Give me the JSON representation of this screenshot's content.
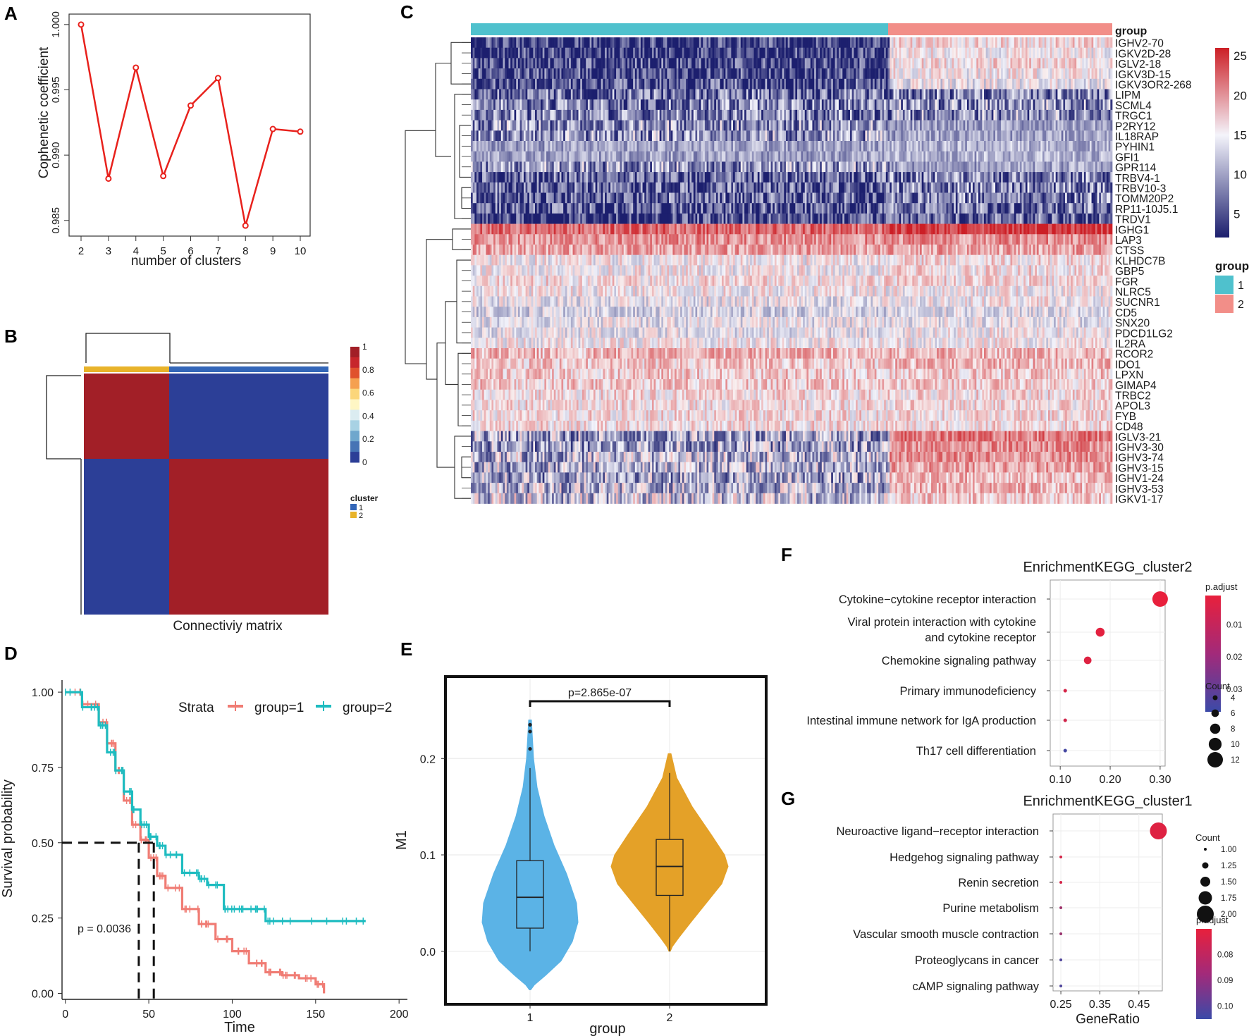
{
  "panel_letters": {
    "a": "A",
    "b": "B",
    "c": "C",
    "d": "D",
    "e": "E",
    "f": "F",
    "g": "G"
  },
  "chart_data": [
    {
      "id": "A",
      "type": "line",
      "xlabel": "number of clusters",
      "ylabel": "Cophenetic coefficient",
      "x": [
        2,
        3,
        4,
        5,
        6,
        7,
        8,
        9,
        10
      ],
      "values": [
        1.0,
        0.9882,
        0.9967,
        0.9884,
        0.9938,
        0.9959,
        0.9846,
        0.992,
        0.9918
      ],
      "ylim": [
        0.9838,
        1.0008
      ],
      "yticks": [
        "0.985",
        "0.990",
        "0.995",
        "1.000"
      ],
      "ytick_values": [
        0.985,
        0.99,
        0.995,
        1.0
      ],
      "color": "#e8211c"
    },
    {
      "id": "B",
      "type": "heatmap",
      "xlabel": "Connectiviy matrix",
      "matrix": [
        [
          1,
          0
        ],
        [
          0,
          1
        ]
      ],
      "cluster_sizes": [
        1,
        2
      ],
      "cluster_bar": [
        "2",
        "1"
      ],
      "colorbar_ticks": [
        "1",
        "0.8",
        "0.6",
        "0.4",
        "0.2",
        "0"
      ],
      "colorbar_colors": [
        "#a21f27",
        "#c7262b",
        "#e0512d",
        "#f5a04f",
        "#fbd67a",
        "#fef6c4",
        "#dbecf1",
        "#a8d2e4",
        "#6fa7cd",
        "#4674b5",
        "#2c3f97"
      ],
      "legend_title": "cluster",
      "legend": [
        {
          "label": "1",
          "color": "#3366b8"
        },
        {
          "label": "2",
          "color": "#e8b32a"
        }
      ],
      "high_color": "#a21f27",
      "low_color": "#2c3f97"
    },
    {
      "id": "C",
      "type": "heatmap",
      "genes": [
        "IGHV2-70",
        "IGKV2D-28",
        "IGLV2-18",
        "IGKV3D-15",
        "IGKV3OR2-268",
        "LIPM",
        "SCML4",
        "TRGC1",
        "P2RY12",
        "IL18RAP",
        "PYHIN1",
        "GFI1",
        "GPR114",
        "TRBV4-1",
        "TRBV10-3",
        "TOMM20P2",
        "RP11-10J5.1",
        "TRDV1",
        "IGHG1",
        "LAP3",
        "CTSS",
        "KLHDC7B",
        "GBP5",
        "FGR",
        "NLRC5",
        "SUCNR1",
        "CD5",
        "SNX20",
        "PDCD1LG2",
        "IL2RA",
        "RCOR2",
        "IDO1",
        "LPXN",
        "GIMAP4",
        "TRBC2",
        "APOL3",
        "FYB",
        "CD48",
        "IGLV3-21",
        "IGHV3-30",
        "IGHV3-74",
        "IGHV3-15",
        "IGHV1-24",
        "IGHV3-53",
        "IGKV1-17"
      ],
      "group1_means": [
        3,
        3,
        4,
        4,
        5,
        7,
        8,
        8,
        9,
        9,
        10,
        10,
        9,
        6,
        6,
        6,
        5,
        4,
        22,
        20,
        19,
        15,
        15,
        16,
        15,
        14,
        13,
        14,
        14,
        15,
        18,
        17,
        17,
        17,
        16,
        16,
        16,
        16,
        10,
        10,
        11,
        11,
        10,
        11,
        12
      ],
      "group2_means": [
        16,
        15,
        16,
        15,
        14,
        8,
        9,
        9,
        10,
        10,
        11,
        11,
        10,
        8,
        8,
        8,
        7,
        6,
        25,
        20,
        19,
        16,
        16,
        16,
        15,
        15,
        14,
        14,
        15,
        15,
        18,
        18,
        17,
        17,
        16,
        16,
        16,
        16,
        21,
        20,
        20,
        19,
        18,
        18,
        17
      ],
      "group_label": "group",
      "groups": [
        {
          "label": "1",
          "color": "#4fc1cd"
        },
        {
          "label": "2",
          "color": "#f28e88"
        }
      ],
      "colorbar_ticks": [
        "25",
        "20",
        "15",
        "10",
        "5"
      ],
      "colorbar_values": [
        25,
        20,
        15,
        10,
        5
      ],
      "colorbar_range": [
        2,
        26
      ]
    },
    {
      "id": "D",
      "type": "line",
      "xlabel": "Time",
      "ylabel": "Survival probability",
      "legend_title": "Strata",
      "series": [
        {
          "name": "group=1",
          "color": "#f07c74",
          "x": [
            0,
            10,
            20,
            25,
            30,
            35,
            40,
            45,
            50,
            55,
            60,
            70,
            80,
            90,
            100,
            110,
            120,
            130,
            140,
            150,
            155
          ],
          "values": [
            1.0,
            0.96,
            0.9,
            0.83,
            0.74,
            0.64,
            0.56,
            0.51,
            0.45,
            0.39,
            0.35,
            0.28,
            0.23,
            0.18,
            0.14,
            0.1,
            0.07,
            0.06,
            0.05,
            0.03,
            0.0
          ]
        },
        {
          "name": "group=2",
          "color": "#1ebcc0",
          "x": [
            0,
            10,
            20,
            25,
            30,
            35,
            40,
            45,
            50,
            55,
            60,
            70,
            80,
            85,
            95,
            100,
            110,
            120,
            130,
            150,
            180
          ],
          "values": [
            1.0,
            0.95,
            0.89,
            0.8,
            0.74,
            0.67,
            0.61,
            0.56,
            0.52,
            0.49,
            0.46,
            0.4,
            0.38,
            0.36,
            0.28,
            0.28,
            0.28,
            0.24,
            0.24,
            0.24,
            0.24
          ]
        }
      ],
      "median_lines": [
        44,
        53
      ],
      "pvalue": "p = 0.0036",
      "xticks": [
        "0",
        "50",
        "100",
        "150",
        "200"
      ],
      "xtick_values": [
        0,
        50,
        100,
        150,
        200
      ],
      "yticks": [
        "0.00",
        "0.25",
        "0.50",
        "0.75",
        "1.00"
      ],
      "ytick_values": [
        0,
        0.25,
        0.5,
        0.75,
        1.0
      ],
      "xlim": [
        -2,
        205
      ],
      "ylim": [
        -0.02,
        1.04
      ]
    },
    {
      "id": "E",
      "type": "violin",
      "xlabel": "group",
      "ylabel": "M1",
      "categories": [
        "1",
        "2"
      ],
      "boxes": [
        {
          "q1": 0.024,
          "median": 0.056,
          "q3": 0.094,
          "whisker_low": 0.0,
          "whisker_high": 0.19,
          "outliers": [
            0.21,
            0.228,
            0.235
          ],
          "ymin": -0.03,
          "ymax": 0.24,
          "color": "#5bb3e6"
        },
        {
          "q1": 0.058,
          "median": 0.088,
          "q3": 0.116,
          "whisker_low": 0.0,
          "whisker_high": 0.185,
          "outliers": [],
          "ymin": 0.0,
          "ymax": 0.21,
          "color": "#e4a128"
        }
      ],
      "pvalue": "p=2.865e-07",
      "yticks": [
        "0.0",
        "0.1",
        "0.2"
      ],
      "ytick_values": [
        0,
        0.1,
        0.2
      ],
      "ylim": [
        -0.055,
        0.285
      ]
    },
    {
      "id": "F",
      "type": "scatter",
      "title": "EnrichmentKEGG_cluster2",
      "terms": [
        "Cytokine−cytokine receptor interaction",
        "Viral protein interaction with cytokine",
        "and cytokine receptor",
        "Chemokine signaling pathway",
        "Primary immunodeficiency",
        "Intestinal immune network for IgA production",
        "Th17 cell differentiation"
      ],
      "points": [
        {
          "ratio": 0.3,
          "count": 12,
          "padj": 0.001,
          "row": 0
        },
        {
          "ratio": 0.18,
          "count": 7,
          "padj": 0.002,
          "row": 1
        },
        {
          "ratio": 0.155,
          "count": 6,
          "padj": 0.003,
          "row": 2
        },
        {
          "ratio": 0.11,
          "count": 3,
          "padj": 0.005,
          "row": 3
        },
        {
          "ratio": 0.11,
          "count": 3,
          "padj": 0.006,
          "row": 4
        },
        {
          "ratio": 0.11,
          "count": 3,
          "padj": 0.035,
          "row": 5
        }
      ],
      "xticks": [
        "0.10",
        "0.20",
        "0.30"
      ],
      "xtick_values": [
        0.1,
        0.2,
        0.3
      ],
      "xlim": [
        0.08,
        0.31
      ],
      "colorbar_title": "p.adjust",
      "colorbar_ticks": [
        "0.01",
        "0.02",
        "0.03"
      ],
      "colorbar_values": [
        0.01,
        0.02,
        0.03
      ],
      "colorbar_range": [
        0.001,
        0.037
      ],
      "size_title": "Count",
      "size_ticks": [
        "4",
        "6",
        "8",
        "10",
        "12"
      ],
      "size_values": [
        4,
        6,
        8,
        10,
        12
      ],
      "low_color": "#e8203c",
      "high_color": "#3b4aa8"
    },
    {
      "id": "G",
      "type": "scatter",
      "title": "EnrichmentKEGG_cluster1",
      "xlabel": "GeneRatio",
      "terms": [
        "Neuroactive ligand−receptor interaction",
        "Hedgehog signaling pathway",
        "Renin secretion",
        "Purine metabolism",
        "Vascular smooth muscle contraction",
        "Proteoglycans in cancer",
        "cAMP signaling pathway"
      ],
      "points": [
        {
          "ratio": 0.5,
          "count": 2,
          "padj": 0.072,
          "row": 0
        },
        {
          "ratio": 0.25,
          "count": 1,
          "padj": 0.074,
          "row": 1
        },
        {
          "ratio": 0.25,
          "count": 1,
          "padj": 0.074,
          "row": 2
        },
        {
          "ratio": 0.25,
          "count": 1,
          "padj": 0.085,
          "row": 3
        },
        {
          "ratio": 0.25,
          "count": 1,
          "padj": 0.086,
          "row": 4
        },
        {
          "ratio": 0.25,
          "count": 1,
          "padj": 0.101,
          "row": 5
        },
        {
          "ratio": 0.25,
          "count": 1,
          "padj": 0.101,
          "row": 6
        }
      ],
      "xticks": [
        "0.25",
        "0.35",
        "0.45"
      ],
      "xtick_values": [
        0.25,
        0.35,
        0.45
      ],
      "xlim": [
        0.23,
        0.51
      ],
      "size_title": "Count",
      "size_ticks": [
        "1.00",
        "1.25",
        "1.50",
        "1.75",
        "2.00"
      ],
      "size_values": [
        1.0,
        1.25,
        1.5,
        1.75,
        2.0
      ],
      "colorbar_title": "p.adjust",
      "colorbar_ticks": [
        "0.08",
        "0.09",
        "0.10"
      ],
      "colorbar_values": [
        0.08,
        0.09,
        0.1
      ],
      "colorbar_range": [
        0.07,
        0.105
      ],
      "low_color": "#e8203c",
      "high_color": "#3b4aa8"
    }
  ]
}
